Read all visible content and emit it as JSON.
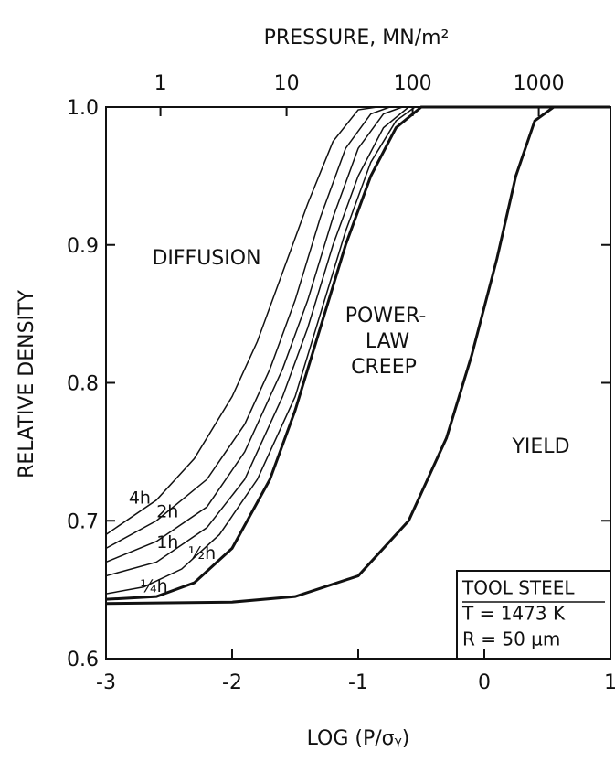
{
  "chart_data": {
    "type": "line",
    "title": "PRESSURE, MN/m²",
    "x_label": "LOG (P/σᵧ)",
    "y_label": "RELATIVE DENSITY",
    "xlim": [
      -3,
      1
    ],
    "xticks": [
      -3,
      -2,
      -1,
      0,
      1
    ],
    "ylim": [
      0.6,
      1.0
    ],
    "yticks": [
      0.6,
      0.7,
      0.8,
      0.9,
      {
        "value": 1.0,
        "label": "1.0"
      }
    ],
    "x2scale": "log",
    "x2lim": [
      0.37,
      3700
    ],
    "x2ticks": [
      1,
      10,
      100,
      1000
    ],
    "color": "#111111",
    "series": [
      {
        "name": "4h",
        "x": [
          -3,
          -2.6,
          -2.3,
          -2,
          -1.8,
          -1.6,
          -1.4,
          -1.2,
          -1,
          -0.85
        ],
        "values": [
          0.69,
          0.715,
          0.745,
          0.79,
          0.83,
          0.88,
          0.93,
          0.975,
          0.998,
          1.0
        ]
      },
      {
        "name": "2h",
        "x": [
          -3,
          -2.6,
          -2.2,
          -1.9,
          -1.7,
          -1.5,
          -1.3,
          -1.1,
          -0.9,
          -0.75
        ],
        "values": [
          0.68,
          0.7,
          0.73,
          0.77,
          0.81,
          0.86,
          0.92,
          0.97,
          0.995,
          1.0
        ]
      },
      {
        "name": "1h",
        "x": [
          -3,
          -2.6,
          -2.2,
          -1.9,
          -1.6,
          -1.4,
          -1.2,
          -1,
          -0.8,
          -0.65
        ],
        "values": [
          0.67,
          0.685,
          0.71,
          0.75,
          0.81,
          0.86,
          0.92,
          0.97,
          0.995,
          1.0
        ]
      },
      {
        "name": "½h",
        "x": [
          -3,
          -2.6,
          -2.2,
          -1.9,
          -1.6,
          -1.4,
          -1.2,
          -1,
          -0.8,
          -0.6
        ],
        "values": [
          0.66,
          0.67,
          0.695,
          0.73,
          0.79,
          0.84,
          0.9,
          0.95,
          0.985,
          1.0
        ]
      },
      {
        "name": "¼h",
        "x": [
          -3,
          -2.7,
          -2.4,
          -2.1,
          -1.8,
          -1.5,
          -1.3,
          -1.1,
          -0.9,
          -0.7,
          -0.55
        ],
        "values": [
          0.647,
          0.652,
          0.665,
          0.69,
          0.73,
          0.79,
          0.85,
          0.91,
          0.96,
          0.99,
          1.0
        ]
      },
      {
        "x": [
          -3,
          -2.6,
          -2.3,
          -2,
          -1.7,
          -1.5,
          -1.3,
          -1.1,
          -0.9,
          -0.7,
          -0.5,
          1
        ],
        "values": [
          0.643,
          0.645,
          0.655,
          0.68,
          0.73,
          0.78,
          0.84,
          0.9,
          0.95,
          0.985,
          1.0,
          1.0
        ],
        "thick": true
      },
      {
        "x": [
          -3,
          -2,
          -1.5,
          -1,
          -0.6,
          -0.3,
          -0.1,
          0.1,
          0.25,
          0.4,
          0.55,
          1
        ],
        "values": [
          0.64,
          0.641,
          0.645,
          0.66,
          0.7,
          0.76,
          0.82,
          0.89,
          0.95,
          0.99,
          1.0,
          1.0
        ],
        "thick": true
      }
    ],
    "annotations": [
      "DIFFUSION",
      "POWER-",
      "LAW",
      "CREEP",
      "YIELD"
    ],
    "legend_box": [
      "TOOL STEEL",
      "T = 1473 K",
      "R = 50 µm"
    ]
  }
}
